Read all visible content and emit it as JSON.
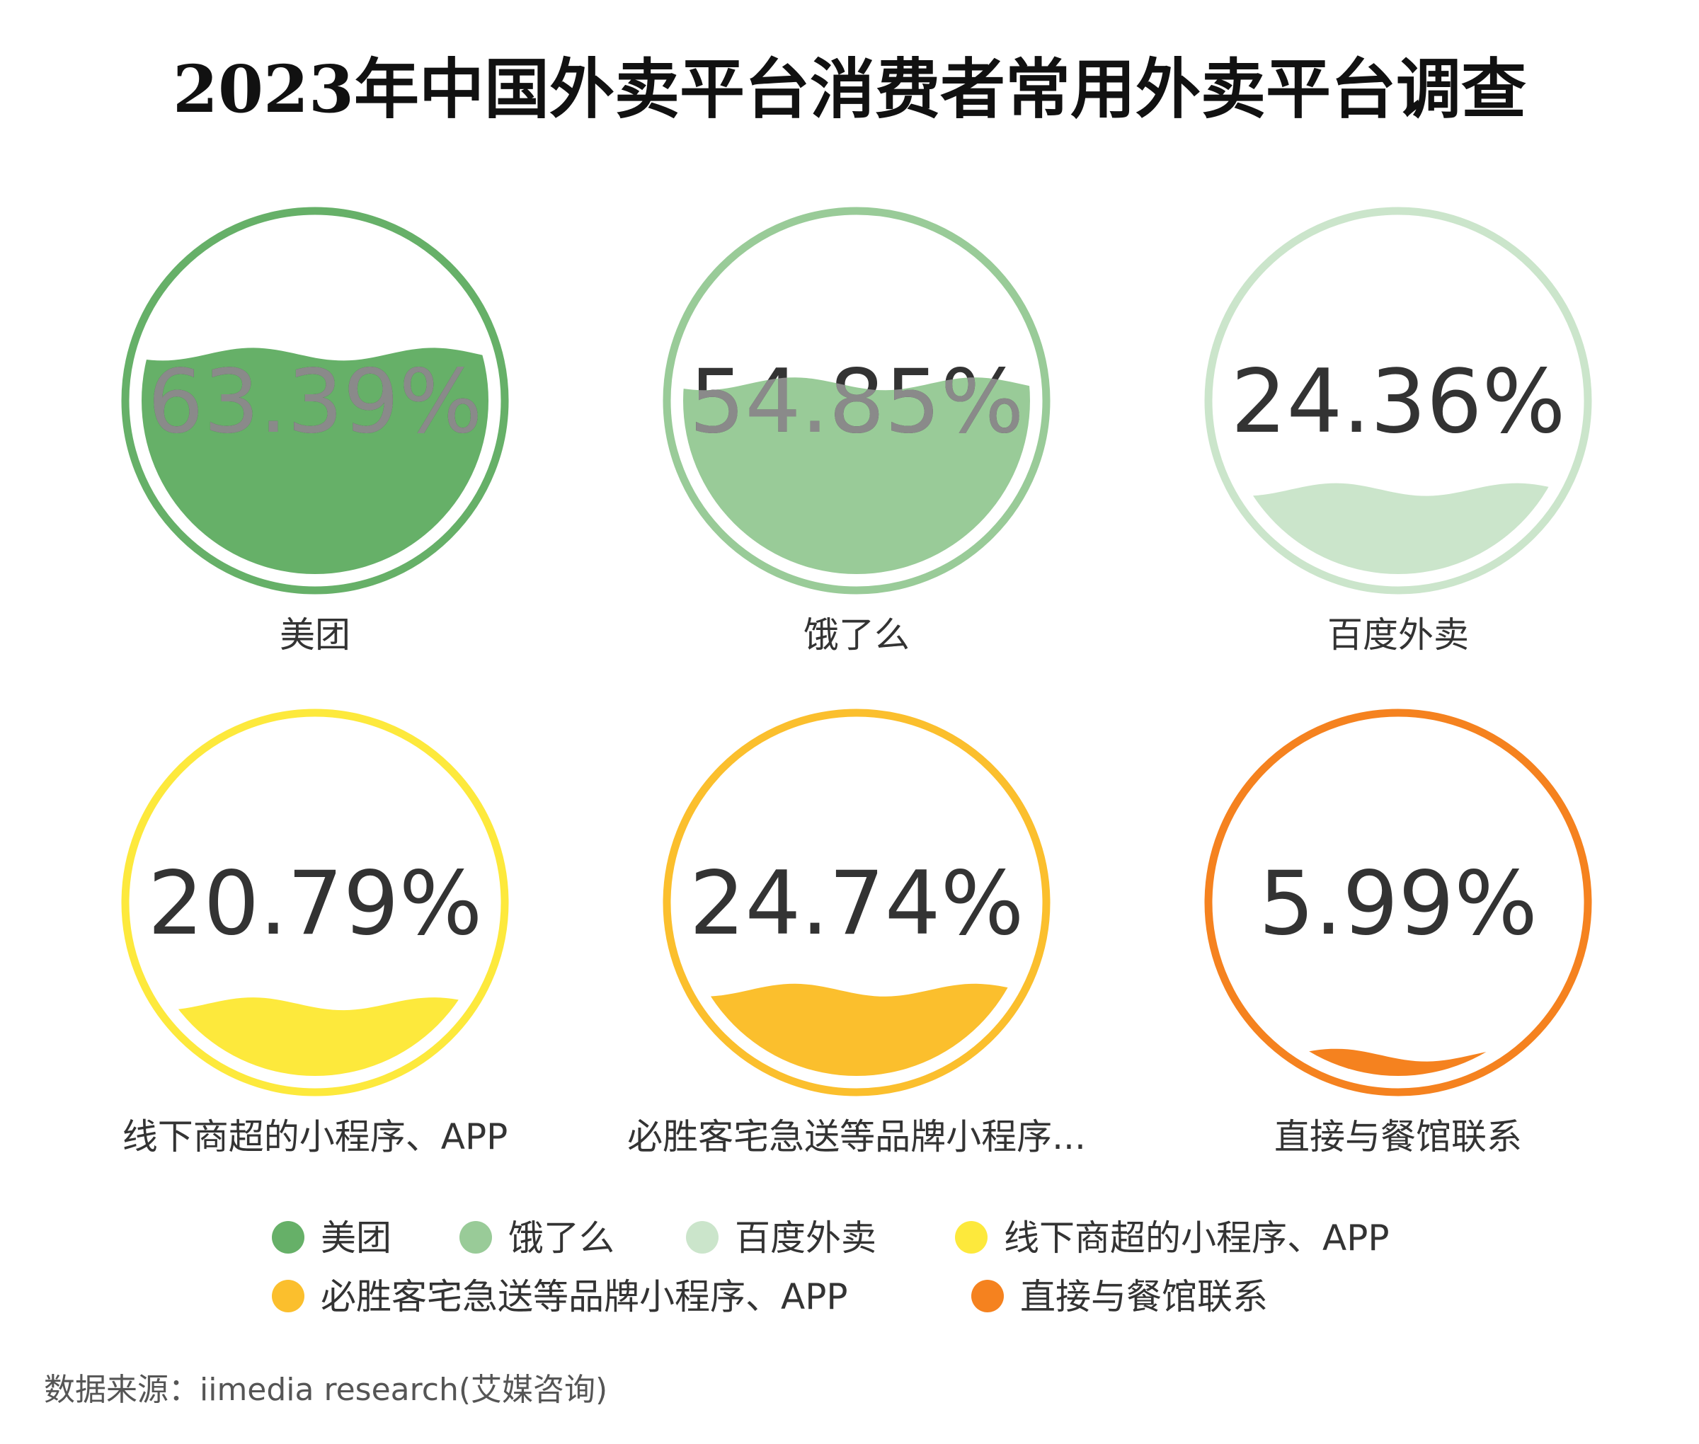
{
  "chart_data": {
    "type": "liquid-fill",
    "title": "2023年中国外卖平台消费者常用外卖平台调查",
    "unit": "%",
    "items": [
      {
        "name": "美团",
        "label": "美团",
        "value": 63.39,
        "display": "63.39%",
        "color": "#66b068"
      },
      {
        "name": "饿了么",
        "label": "饿了么",
        "value": 54.85,
        "display": "54.85%",
        "color": "#99cb98"
      },
      {
        "name": "百度外卖",
        "label": "百度外卖",
        "value": 24.36,
        "display": "24.36%",
        "color": "#cbe5cb"
      },
      {
        "name": "线下商超的小程序、APP",
        "label": "线下商超的小程序、APP",
        "value": 20.79,
        "display": "20.79%",
        "color": "#fde93c"
      },
      {
        "name": "必胜客宅急送等品牌小程序、APP",
        "label": "必胜客宅急送等品牌小程序...",
        "value": 24.74,
        "display": "24.74%",
        "color": "#fbbf2d"
      },
      {
        "name": "直接与餐馆联系",
        "label": "直接与餐馆联系",
        "value": 5.99,
        "display": "5.99%",
        "color": "#f5821f"
      }
    ],
    "legend": {
      "position": "bottom",
      "entries": [
        "美团",
        "饿了么",
        "百度外卖",
        "线下商超的小程序、APP",
        "必胜客宅急送等品牌小程序、APP",
        "直接与餐馆联系"
      ]
    }
  },
  "source": "数据来源：iimedia research(艾媒咨询)"
}
